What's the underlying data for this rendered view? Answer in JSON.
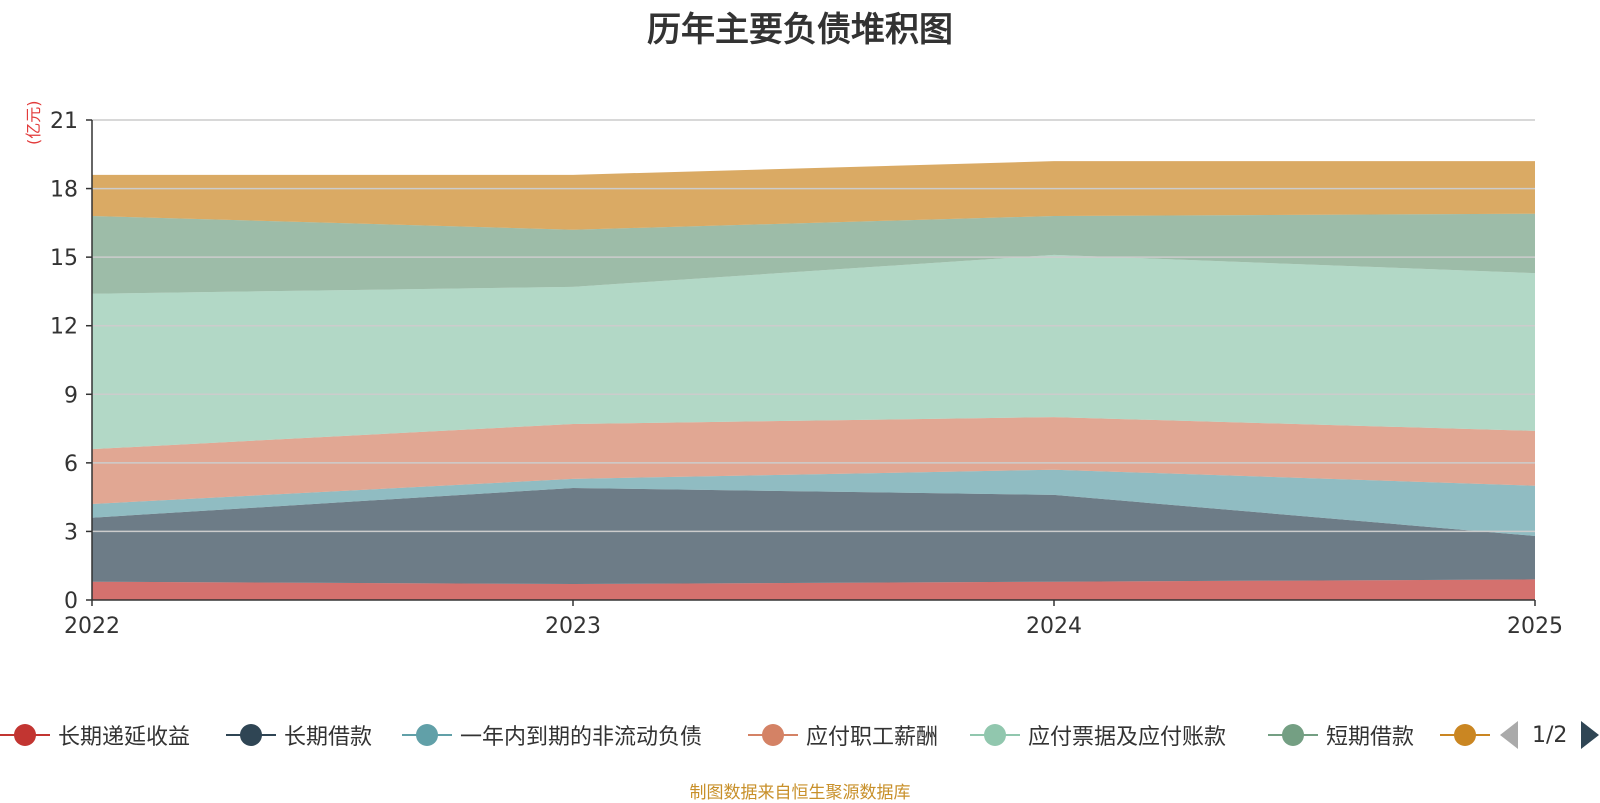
{
  "chart_data": {
    "type": "area",
    "stacked": true,
    "title": "历年主要负债堆积图",
    "ylabel": "(亿元)",
    "xlabel": "",
    "categories": [
      "2022",
      "2023",
      "2024",
      "2025"
    ],
    "ylim": [
      0,
      21
    ],
    "yticks": [
      0,
      3,
      6,
      9,
      12,
      15,
      18,
      21
    ],
    "grid": true,
    "series": [
      {
        "name": "长期递延收益",
        "color": "#c23531",
        "values": [
          0.8,
          0.7,
          0.8,
          0.9
        ]
      },
      {
        "name": "长期借款",
        "color": "#2f4554",
        "values": [
          2.8,
          4.2,
          3.8,
          1.9
        ]
      },
      {
        "name": "一年内到期的非流动负债",
        "color": "#61a0a8",
        "values": [
          0.6,
          0.4,
          1.1,
          2.2
        ]
      },
      {
        "name": "应付职工薪酬",
        "color": "#d48265",
        "values": [
          2.4,
          2.4,
          2.3,
          2.4
        ]
      },
      {
        "name": "应付票据及应付账款",
        "color": "#91c7ae",
        "values": [
          6.8,
          6.0,
          7.1,
          6.9
        ]
      },
      {
        "name": "短期借款",
        "color": "#749f83",
        "values": [
          3.4,
          2.5,
          1.7,
          2.6
        ]
      },
      {
        "name": "",
        "color": "#ca8622",
        "values": [
          1.8,
          2.4,
          2.4,
          2.3
        ]
      }
    ]
  },
  "legend": {
    "items": [
      {
        "label": "长期递延收益",
        "color": "#c23531"
      },
      {
        "label": "长期借款",
        "color": "#2f4554"
      },
      {
        "label": "一年内到期的非流动负债",
        "color": "#61a0a8"
      },
      {
        "label": "应付职工薪酬",
        "color": "#d48265"
      },
      {
        "label": "应付票据及应付账款",
        "color": "#91c7ae"
      },
      {
        "label": "短期借款",
        "color": "#749f83"
      },
      {
        "label": "",
        "color": "#ca8622"
      }
    ],
    "page": "1/2"
  },
  "source": "制图数据来自恒生聚源数据库"
}
